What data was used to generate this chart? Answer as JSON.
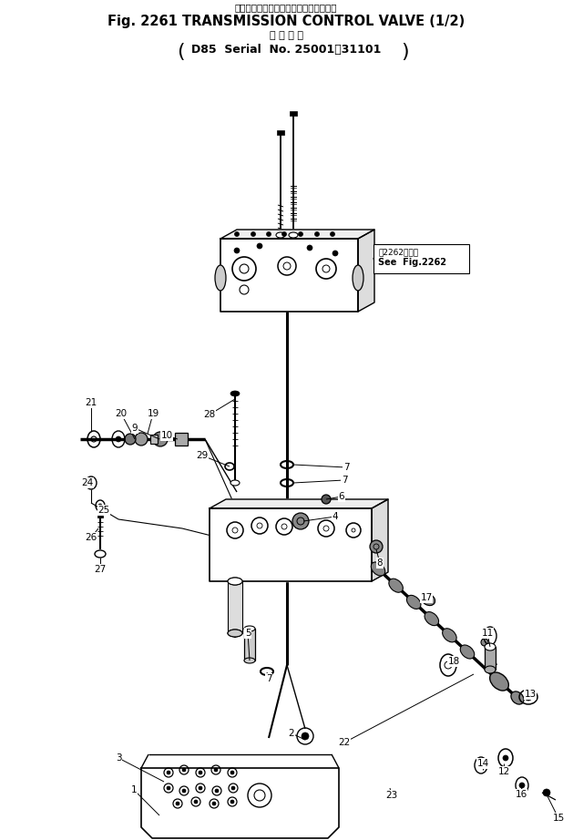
{
  "title_jp": "トランスミッションコントロールバルブ",
  "title_en": "Fig. 2261 TRANSMISSION CONTROL VALVE (1/2)",
  "subtitle_jp": "適 用 号 機",
  "subtitle_en": "D85  Serial  No. 25001～31101",
  "bg_color": "#ffffff",
  "line_color": "#000000",
  "fig_width": 6.29,
  "fig_height": 9.22,
  "note_jp": "第2262図参照",
  "note_en": "See  Fig.2262",
  "dpi": 100
}
